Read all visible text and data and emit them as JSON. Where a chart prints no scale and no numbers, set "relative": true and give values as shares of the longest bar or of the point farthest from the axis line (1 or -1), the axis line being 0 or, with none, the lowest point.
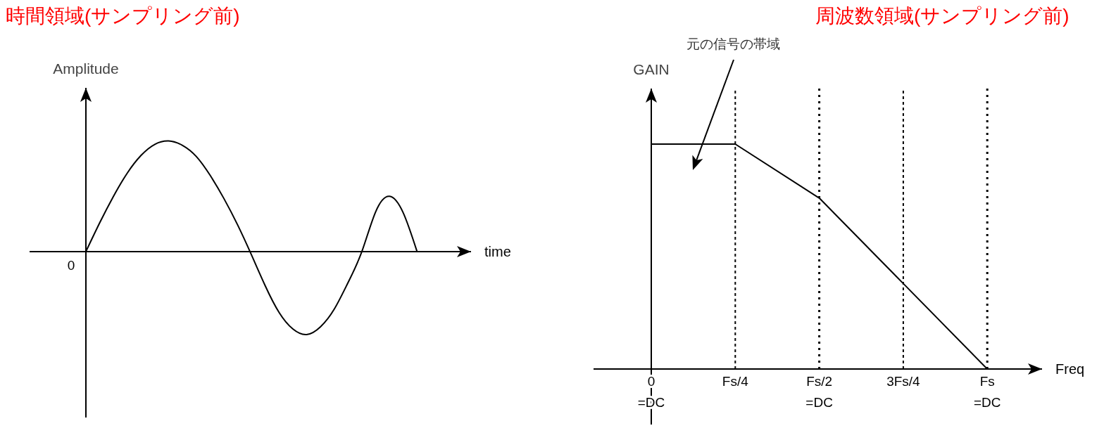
{
  "chart_data": [
    {
      "type": "line",
      "title": "時間領域(サンプリング前)",
      "xlabel": "time",
      "ylabel": "Amplitude",
      "relative": true,
      "tick_labels": false,
      "color": "#000000",
      "categories": [
        null,
        null,
        null,
        null,
        null,
        null,
        null,
        null,
        null,
        null,
        null,
        null,
        null,
        null,
        null,
        null,
        null,
        null,
        null,
        null,
        null,
        null,
        null,
        null,
        null
      ],
      "values": [
        0,
        0.26,
        0.5,
        0.71,
        0.87,
        0.97,
        1,
        0.96,
        0.86,
        0.69,
        0.48,
        0.24,
        -0.03,
        -0.31,
        -0.55,
        -0.7,
        -0.75,
        -0.68,
        -0.52,
        -0.28,
        0,
        0.36,
        0.5,
        0.35,
        0
      ],
      "annotations": [
        "0"
      ]
    },
    {
      "type": "line",
      "title": "周波数領域(サンプリング前)",
      "xlabel": "Freq",
      "ylabel": "GAIN",
      "relative": true,
      "tick_labels": "x",
      "color": "#000000",
      "categories": [
        "0\n=DC",
        "Fs/4",
        "Fs/2\n=DC",
        "3Fs/4",
        "Fs\n=DC"
      ],
      "values": [
        1,
        1,
        0.76,
        0.38,
        0
      ],
      "ref_lines": [
        {
          "axis": "x",
          "value": "Fs/4",
          "line_style": "dashed"
        },
        {
          "axis": "x",
          "value": "Fs/2\n=DC",
          "line_style": "dotted"
        },
        {
          "axis": "x",
          "value": "3Fs/4",
          "line_style": "dashed"
        },
        {
          "axis": "x",
          "value": "Fs\n=DC",
          "line_style": "dotted"
        }
      ],
      "annotations": [
        "元の信号の帯域"
      ]
    }
  ]
}
